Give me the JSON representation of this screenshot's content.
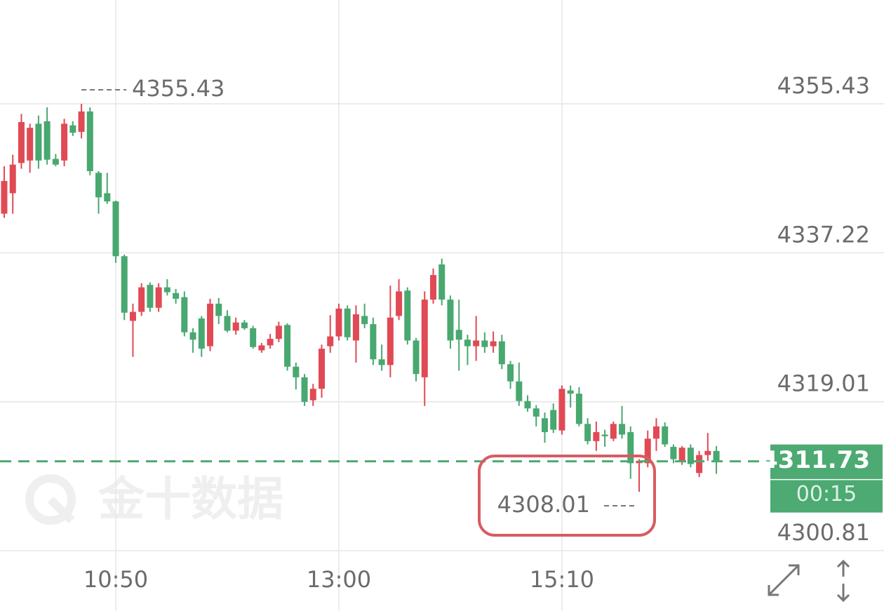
{
  "chart_data": {
    "type": "candlestick",
    "watermark": "金十数据",
    "countdown": "00:15",
    "up_color": "#e04a54",
    "down_color": "#48a870",
    "price_box_color": "#4caa72",
    "ylim": [
      4300.81,
      4368.12
    ],
    "yticks": [
      4300.81,
      4319.01,
      4337.22,
      4355.43
    ],
    "xlim": [
      -0.49,
      89.29
    ],
    "xticks": [
      {
        "value": 13,
        "label": "10:50"
      },
      {
        "value": 39,
        "label": "13:00"
      },
      {
        "value": 65,
        "label": "15:10"
      }
    ],
    "grid": true,
    "open": [
      4342.0,
      4344.5,
      4348.2,
      4348.5,
      4353.0,
      4353.3,
      4348.7,
      4348.5,
      4352.8,
      4352.0,
      4354.5,
      4347.0,
      4344.5,
      4343.5,
      4336.8,
      4328.9,
      4330.0,
      4333.3,
      4330.5,
      4333.0,
      4332.3,
      4331.8,
      4327.5,
      4329.2,
      4325.8,
      4331.0,
      4329.5,
      4327.7,
      4328.7,
      4328.0,
      4325.3,
      4325.9,
      4326.7,
      4328.4,
      4323.3,
      4322.0,
      4319.2,
      4320.6,
      4325.8,
      4327.0,
      4330.4,
      4326.5,
      4329.5,
      4328.5,
      4324.2,
      4323.5,
      4329.5,
      4332.6,
      4326.5,
      4322.0,
      4331.5,
      4335.8,
      4331.5,
      4327.8,
      4326.6,
      4325.8,
      4326.5,
      4325.8,
      4326.4,
      4323.6,
      4321.5,
      4319.1,
      4318.2,
      4317.0,
      4318.0,
      4315.5,
      4320.4,
      4320.0,
      4316.3,
      4314.2,
      4315.0,
      4314.5,
      4316.3,
      4315.3,
      4311.5,
      4311.5,
      4314.5,
      4316.0,
      4313.5,
      4311.7,
      4313.4,
      4310.3,
      4312.5,
      4313.0
    ],
    "high": [
      4347.8,
      4349.2,
      4354.2,
      4353.0,
      4354.0,
      4355.0,
      4349.3,
      4353.6,
      4353.3,
      4355.43,
      4355.0,
      4347.2,
      4347.0,
      4343.6,
      4337.0,
      4331.0,
      4333.5,
      4333.6,
      4333.5,
      4334.0,
      4332.8,
      4332.5,
      4328.0,
      4329.5,
      4331.6,
      4331.7,
      4330.2,
      4329.3,
      4329.0,
      4328.3,
      4326.2,
      4327.3,
      4328.8,
      4328.6,
      4323.8,
      4322.4,
      4321.2,
      4326.0,
      4329.6,
      4331.0,
      4330.8,
      4330.8,
      4331.0,
      4329.3,
      4326.0,
      4333.2,
      4334.0,
      4333.0,
      4326.8,
      4332.5,
      4335.3,
      4336.5,
      4332.0,
      4331.5,
      4327.2,
      4329.5,
      4327.5,
      4327.6,
      4327.2,
      4324.0,
      4323.8,
      4319.8,
      4318.6,
      4317.7,
      4318.8,
      4321.0,
      4321.0,
      4320.8,
      4317.0,
      4316.6,
      4315.6,
      4316.6,
      4318.5,
      4316.0,
      4312.0,
      4315.5,
      4317.0,
      4316.5,
      4313.8,
      4313.6,
      4313.8,
      4313.0,
      4315.2,
      4313.6
    ],
    "low": [
      4341.5,
      4342.0,
      4347.5,
      4347.0,
      4347.5,
      4348.0,
      4347.8,
      4347.8,
      4351.5,
      4351.2,
      4346.7,
      4342.0,
      4343.2,
      4336.0,
      4329.0,
      4324.5,
      4329.5,
      4330.0,
      4330.0,
      4332.0,
      4331.0,
      4327.0,
      4325.0,
      4324.5,
      4325.2,
      4328.5,
      4327.5,
      4327.2,
      4327.8,
      4325.5,
      4325.0,
      4325.5,
      4326.3,
      4322.8,
      4320.5,
      4318.5,
      4318.5,
      4319.5,
      4325.0,
      4326.5,
      4326.5,
      4323.8,
      4328.0,
      4323.5,
      4322.8,
      4322.0,
      4329.0,
      4326.0,
      4321.5,
      4318.5,
      4331.0,
      4330.8,
      4325.5,
      4322.8,
      4323.5,
      4324.0,
      4325.0,
      4325.0,
      4323.0,
      4320.6,
      4318.5,
      4317.8,
      4316.0,
      4314.0,
      4315.2,
      4315.0,
      4318.3,
      4316.0,
      4313.8,
      4313.0,
      4313.5,
      4314.2,
      4314.5,
      4309.6,
      4308.01,
      4311.0,
      4313.0,
      4313.5,
      4311.5,
      4311.3,
      4311.0,
      4309.8,
      4311.8,
      4310.2
    ],
    "close": [
      4346.0,
      4348.0,
      4353.2,
      4352.5,
      4348.5,
      4348.6,
      4348.0,
      4353.0,
      4351.9,
      4354.5,
      4347.2,
      4344.0,
      4343.5,
      4336.8,
      4329.9,
      4330.0,
      4333.0,
      4330.5,
      4333.0,
      4332.4,
      4331.6,
      4327.5,
      4326.6,
      4325.5,
      4331.0,
      4329.5,
      4327.7,
      4328.7,
      4328.0,
      4325.7,
      4325.9,
      4326.7,
      4328.3,
      4323.3,
      4322.0,
      4319.0,
      4320.6,
      4325.5,
      4327.0,
      4330.4,
      4326.9,
      4329.7,
      4328.5,
      4324.2,
      4323.5,
      4329.3,
      4332.5,
      4326.5,
      4322.4,
      4331.5,
      4334.5,
      4331.5,
      4326.5,
      4326.6,
      4325.8,
      4326.5,
      4325.7,
      4326.4,
      4323.6,
      4321.5,
      4319.1,
      4318.2,
      4317.2,
      4315.3,
      4315.6,
      4320.6,
      4320.0,
      4316.3,
      4314.2,
      4315.3,
      4314.8,
      4316.3,
      4315.0,
      4311.5,
      4311.8,
      4314.5,
      4316.0,
      4313.8,
      4312.0,
      4313.4,
      4311.4,
      4312.5,
      4313.0,
      4311.73
    ]
  }
}
